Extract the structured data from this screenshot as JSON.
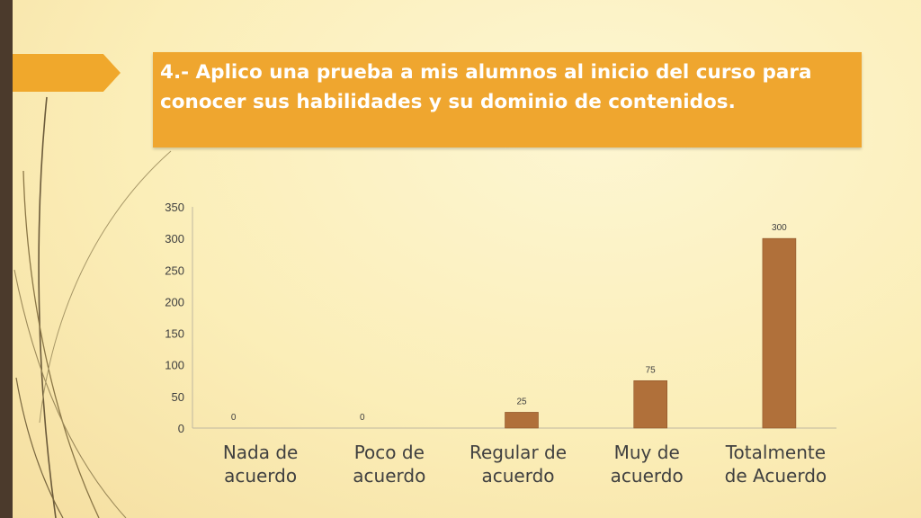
{
  "slide": {
    "title": "4.- Aplico una prueba a mis alumnos al inicio del curso para conocer sus habilidades y su  dominio de contenidos.",
    "colors": {
      "accent": "#f0a82c",
      "band": "#4b3a2c",
      "bar": "#b0703a"
    }
  },
  "chart_data": {
    "type": "bar",
    "categories": [
      [
        "Nada de",
        "acuerdo"
      ],
      [
        "Poco de",
        "acuerdo"
      ],
      [
        "Regular de",
        "acuerdo"
      ],
      [
        "Muy de",
        "acuerdo"
      ],
      [
        "Totalmente",
        "de Acuerdo"
      ]
    ],
    "values": [
      0,
      0,
      25,
      75,
      300
    ],
    "ylim": [
      0,
      350
    ],
    "yticks": [
      0,
      50,
      100,
      150,
      200,
      250,
      300,
      350
    ],
    "data_labels": true,
    "grid": false,
    "legend": "none",
    "title": "",
    "xlabel": "",
    "ylabel": ""
  }
}
